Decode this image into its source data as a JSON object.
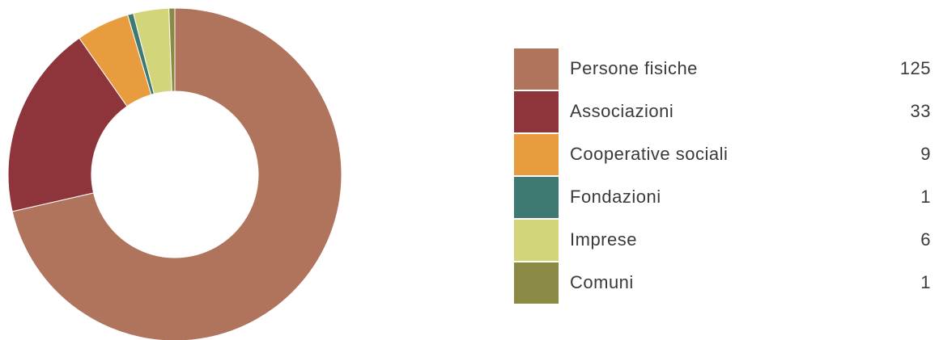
{
  "chart_data": {
    "type": "donut",
    "categories": [
      "Persone fisiche",
      "Associazioni",
      "Cooperative sociali",
      "Fondazioni",
      "Imprese",
      "Comuni"
    ],
    "values": [
      125,
      33,
      9,
      1,
      6,
      1
    ],
    "colors": [
      "#b0735c",
      "#8e353b",
      "#e89c3e",
      "#3f7a72",
      "#d3d57b",
      "#8a8a45"
    ]
  }
}
